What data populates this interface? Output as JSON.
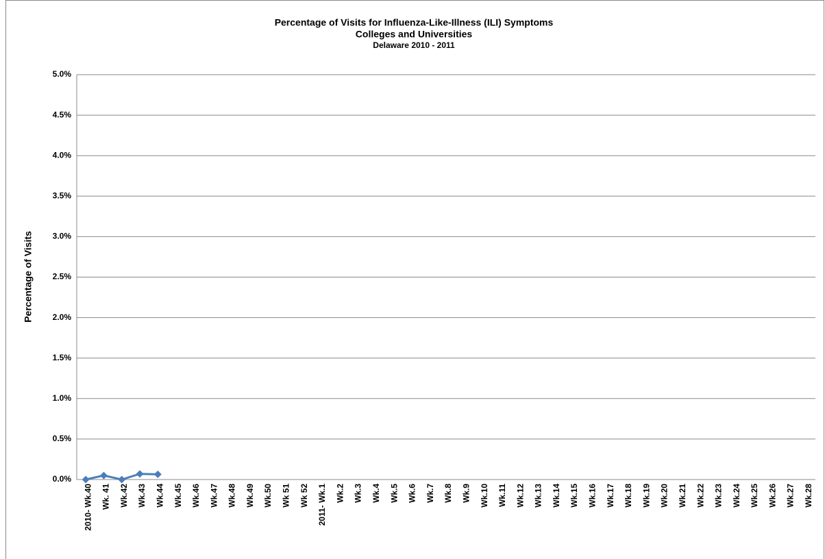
{
  "chart_data": {
    "type": "line",
    "title": "Percentage of Visits for Influenza-Like-Illness (ILI) Symptoms",
    "subtitle": "Colleges and Universities",
    "subtitle2": "Delaware 2010 - 2011",
    "y_label": "Percentage of Visits",
    "categories": [
      "2010- Wk.40",
      "Wk. 41",
      "Wk.42",
      "Wk.43",
      "Wk.44",
      "Wk.45",
      "Wk.46",
      "Wk.47",
      "Wk.48",
      "Wk.49",
      "Wk.50",
      "Wk 51",
      "Wk 52",
      "2011- Wk.1",
      "Wk.2",
      "Wk.3",
      "Wk.4",
      "Wk.5",
      "Wk.6",
      "Wk.7",
      "Wk.8",
      "Wk.9",
      "Wk.10",
      "Wk.11",
      "Wk.12",
      "Wk.13",
      "Wk.14",
      "Wk.15",
      "Wk.16",
      "Wk.17",
      "Wk.18",
      "Wk.19",
      "Wk.20",
      "Wk.21",
      "Wk.22",
      "Wk.23",
      "Wk.24",
      "Wk.25",
      "Wk.26",
      "Wk.27",
      "Wk.28"
    ],
    "values": [
      0,
      0.05,
      0,
      0.07,
      0.065,
      null,
      null,
      null,
      null,
      null,
      null,
      null,
      null,
      null,
      null,
      null,
      null,
      null,
      null,
      null,
      null,
      null,
      null,
      null,
      null,
      null,
      null,
      null,
      null,
      null,
      null,
      null,
      null,
      null,
      null,
      null,
      null,
      null,
      null,
      null,
      null
    ],
    "color": "#4a7ebb",
    "ylim": [
      0,
      5
    ],
    "yticks": [
      {
        "value": 0,
        "label": "0.0%"
      },
      {
        "value": 0.5,
        "label": "0.5%"
      },
      {
        "value": 1,
        "label": "1.0%"
      },
      {
        "value": 1.5,
        "label": "1.5%"
      },
      {
        "value": 2,
        "label": "2.0%"
      },
      {
        "value": 2.5,
        "label": "2.5%"
      },
      {
        "value": 3,
        "label": "3.0%"
      },
      {
        "value": 3.5,
        "label": "3.5%"
      },
      {
        "value": 4,
        "label": "4.0%"
      },
      {
        "value": 4.5,
        "label": "4.5%"
      },
      {
        "value": 5,
        "label": "5.0%"
      }
    ],
    "grid": true
  }
}
